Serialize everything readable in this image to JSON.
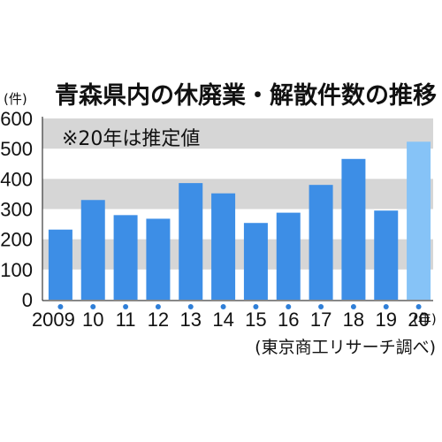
{
  "chart_data": {
    "type": "bar",
    "title": "青森県内の休廃業・解散件数の推移",
    "note": "※20年は推定値",
    "ylabel": "(件)",
    "xunit": "(年)",
    "source": "(東京商工リサーチ調べ)",
    "categories": [
      "2009",
      "10",
      "11",
      "12",
      "13",
      "14",
      "15",
      "16",
      "17",
      "18",
      "19",
      "20"
    ],
    "values": [
      232,
      330,
      280,
      268,
      386,
      352,
      254,
      288,
      380,
      466,
      295,
      523
    ],
    "estimated": [
      false,
      false,
      false,
      false,
      false,
      false,
      false,
      false,
      false,
      false,
      false,
      true
    ],
    "ylim": [
      0,
      600
    ],
    "yticks": [
      "0",
      "100",
      "200",
      "300",
      "400",
      "500",
      "600"
    ],
    "grid": "alternating bands",
    "colors": {
      "bar": "#3d8ee6",
      "bar_estimated": "#86c3f7",
      "band": "#d6d6d6",
      "dot": "#2f7fd8"
    }
  }
}
